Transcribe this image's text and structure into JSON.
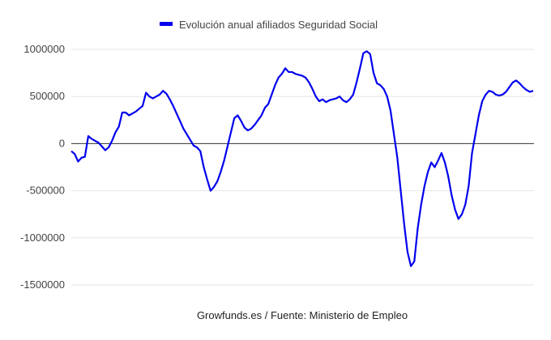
{
  "chart_data": {
    "type": "line",
    "legend_position": "top",
    "grid": true,
    "ylim": [
      -1500000,
      1000000
    ],
    "yticks": [
      1000000,
      500000,
      0,
      -500000,
      -1000000,
      -1500000
    ],
    "ytick_labels": [
      "1000000",
      "500000",
      "0",
      "-500000",
      "-1000000",
      "-1500000"
    ],
    "xlabel": "Growfunds.es / Fuente: Ministerio de Empleo",
    "ylabel": "",
    "series": [
      {
        "name": "Evolución anual afiliados Seguridad Social",
        "color": "#0000ee",
        "values": [
          -80000,
          -110000,
          -190000,
          -150000,
          -140000,
          80000,
          50000,
          30000,
          10000,
          -30000,
          -70000,
          -40000,
          30000,
          120000,
          180000,
          330000,
          330000,
          300000,
          320000,
          340000,
          370000,
          400000,
          540000,
          500000,
          480000,
          500000,
          520000,
          560000,
          530000,
          470000,
          400000,
          320000,
          240000,
          160000,
          100000,
          40000,
          -20000,
          -40000,
          -80000,
          -250000,
          -380000,
          -500000,
          -460000,
          -400000,
          -300000,
          -180000,
          -30000,
          120000,
          270000,
          300000,
          240000,
          170000,
          140000,
          160000,
          200000,
          250000,
          300000,
          380000,
          420000,
          520000,
          620000,
          700000,
          740000,
          800000,
          760000,
          760000,
          740000,
          730000,
          720000,
          700000,
          650000,
          580000,
          500000,
          450000,
          470000,
          440000,
          460000,
          470000,
          480000,
          500000,
          460000,
          440000,
          470000,
          520000,
          650000,
          800000,
          960000,
          980000,
          950000,
          750000,
          640000,
          620000,
          580000,
          500000,
          350000,
          100000,
          -150000,
          -500000,
          -850000,
          -1150000,
          -1300000,
          -1250000,
          -900000,
          -650000,
          -450000,
          -300000,
          -200000,
          -250000,
          -180000,
          -100000,
          -200000,
          -350000,
          -550000,
          -700000,
          -800000,
          -750000,
          -650000,
          -450000,
          -100000,
          100000,
          300000,
          450000,
          520000,
          560000,
          550000,
          520000,
          510000,
          520000,
          550000,
          600000,
          650000,
          670000,
          640000,
          600000,
          570000,
          550000,
          560000
        ]
      }
    ]
  }
}
